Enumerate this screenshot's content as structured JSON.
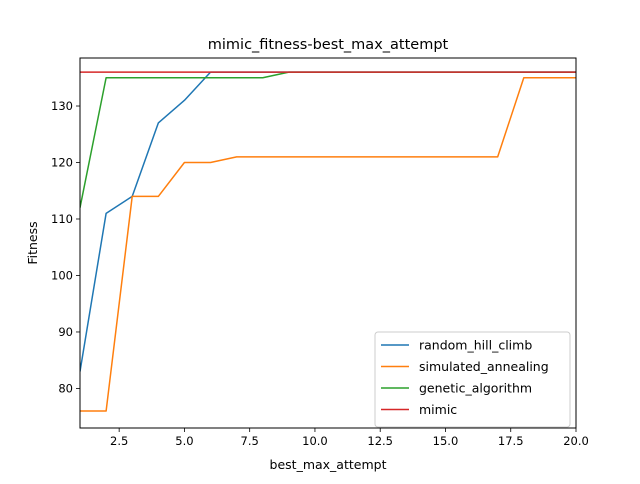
{
  "chart_data": {
    "type": "line",
    "title": "mimic_fitness-best_max_attempt",
    "xlabel": "best_max_attempt",
    "ylabel": "Fitness",
    "xlim": [
      1,
      20
    ],
    "ylim": [
      73,
      138.5
    ],
    "xticks": [
      2.5,
      5.0,
      7.5,
      10.0,
      12.5,
      15.0,
      17.5,
      20.0
    ],
    "xtick_labels": [
      "2.5",
      "5.0",
      "7.5",
      "10.0",
      "12.5",
      "15.0",
      "17.5",
      "20.0"
    ],
    "yticks": [
      80,
      90,
      100,
      110,
      120,
      130
    ],
    "ytick_labels": [
      "80",
      "90",
      "100",
      "110",
      "120",
      "130"
    ],
    "grid": false,
    "legend_position": "lower-right",
    "series": [
      {
        "name": "random_hill_climb",
        "color": "#1f77b4",
        "x": [
          1,
          2,
          3,
          4,
          5,
          6,
          7,
          8,
          9,
          10,
          11,
          12,
          13,
          14,
          15,
          16,
          17,
          18,
          19,
          20
        ],
        "values": [
          83,
          111,
          114,
          127,
          131,
          136,
          136,
          136,
          136,
          136,
          136,
          136,
          136,
          136,
          136,
          136,
          136,
          136,
          136,
          136
        ]
      },
      {
        "name": "simulated_annealing",
        "color": "#ff7f0e",
        "x": [
          1,
          2,
          3,
          4,
          5,
          6,
          7,
          8,
          9,
          10,
          11,
          12,
          13,
          14,
          15,
          16,
          17,
          18,
          19,
          20
        ],
        "values": [
          76,
          76,
          114,
          114,
          120,
          120,
          121,
          121,
          121,
          121,
          121,
          121,
          121,
          121,
          121,
          121,
          121,
          135,
          135,
          135
        ]
      },
      {
        "name": "genetic_algorithm",
        "color": "#2ca02c",
        "x": [
          1,
          2,
          3,
          4,
          5,
          6,
          7,
          8,
          9,
          10,
          11,
          12,
          13,
          14,
          15,
          16,
          17,
          18,
          19,
          20
        ],
        "values": [
          112,
          135,
          135,
          135,
          135,
          135,
          135,
          135,
          136,
          136,
          136,
          136,
          136,
          136,
          136,
          136,
          136,
          136,
          136,
          136
        ]
      },
      {
        "name": "mimic",
        "color": "#d62728",
        "x": [
          1,
          2,
          3,
          4,
          5,
          6,
          7,
          8,
          9,
          10,
          11,
          12,
          13,
          14,
          15,
          16,
          17,
          18,
          19,
          20
        ],
        "values": [
          136,
          136,
          136,
          136,
          136,
          136,
          136,
          136,
          136,
          136,
          136,
          136,
          136,
          136,
          136,
          136,
          136,
          136,
          136,
          136
        ]
      }
    ]
  }
}
